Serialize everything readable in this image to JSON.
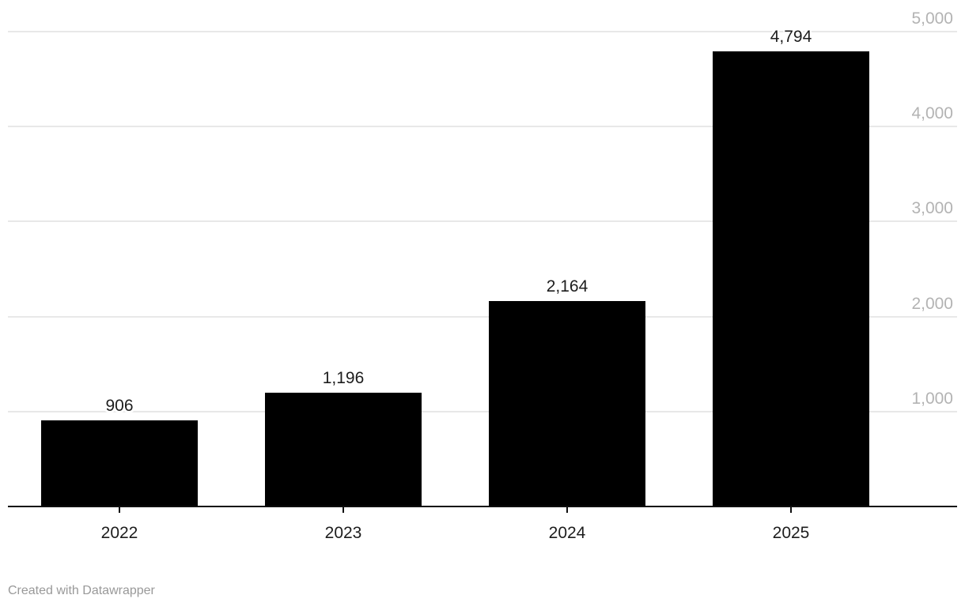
{
  "chart_data": {
    "type": "bar",
    "categories": [
      "2022",
      "2023",
      "2024",
      "2025"
    ],
    "values": [
      906,
      1196,
      2164,
      4794
    ],
    "value_labels": [
      "906",
      "1,196",
      "2,164",
      "4,794"
    ],
    "title": "",
    "xlabel": "",
    "ylabel": "",
    "ylim": [
      0,
      5000
    ],
    "yticks": [
      1000,
      2000,
      3000,
      4000,
      5000
    ],
    "ytick_labels": [
      "1,000",
      "2,000",
      "3,000",
      "4,000",
      "5,000"
    ],
    "grid": true,
    "legend": "none",
    "ytick_side": "right",
    "bar_color": "#000000",
    "gridline_color": "#e8e8e8",
    "axis_tick_label_color": "#b3b3b3",
    "value_label_color": "#1d1d1d",
    "category_label_color": "#1d1d1d",
    "baseline_color": "#0f0f0f"
  },
  "footer": {
    "credit": "Created with Datawrapper"
  }
}
